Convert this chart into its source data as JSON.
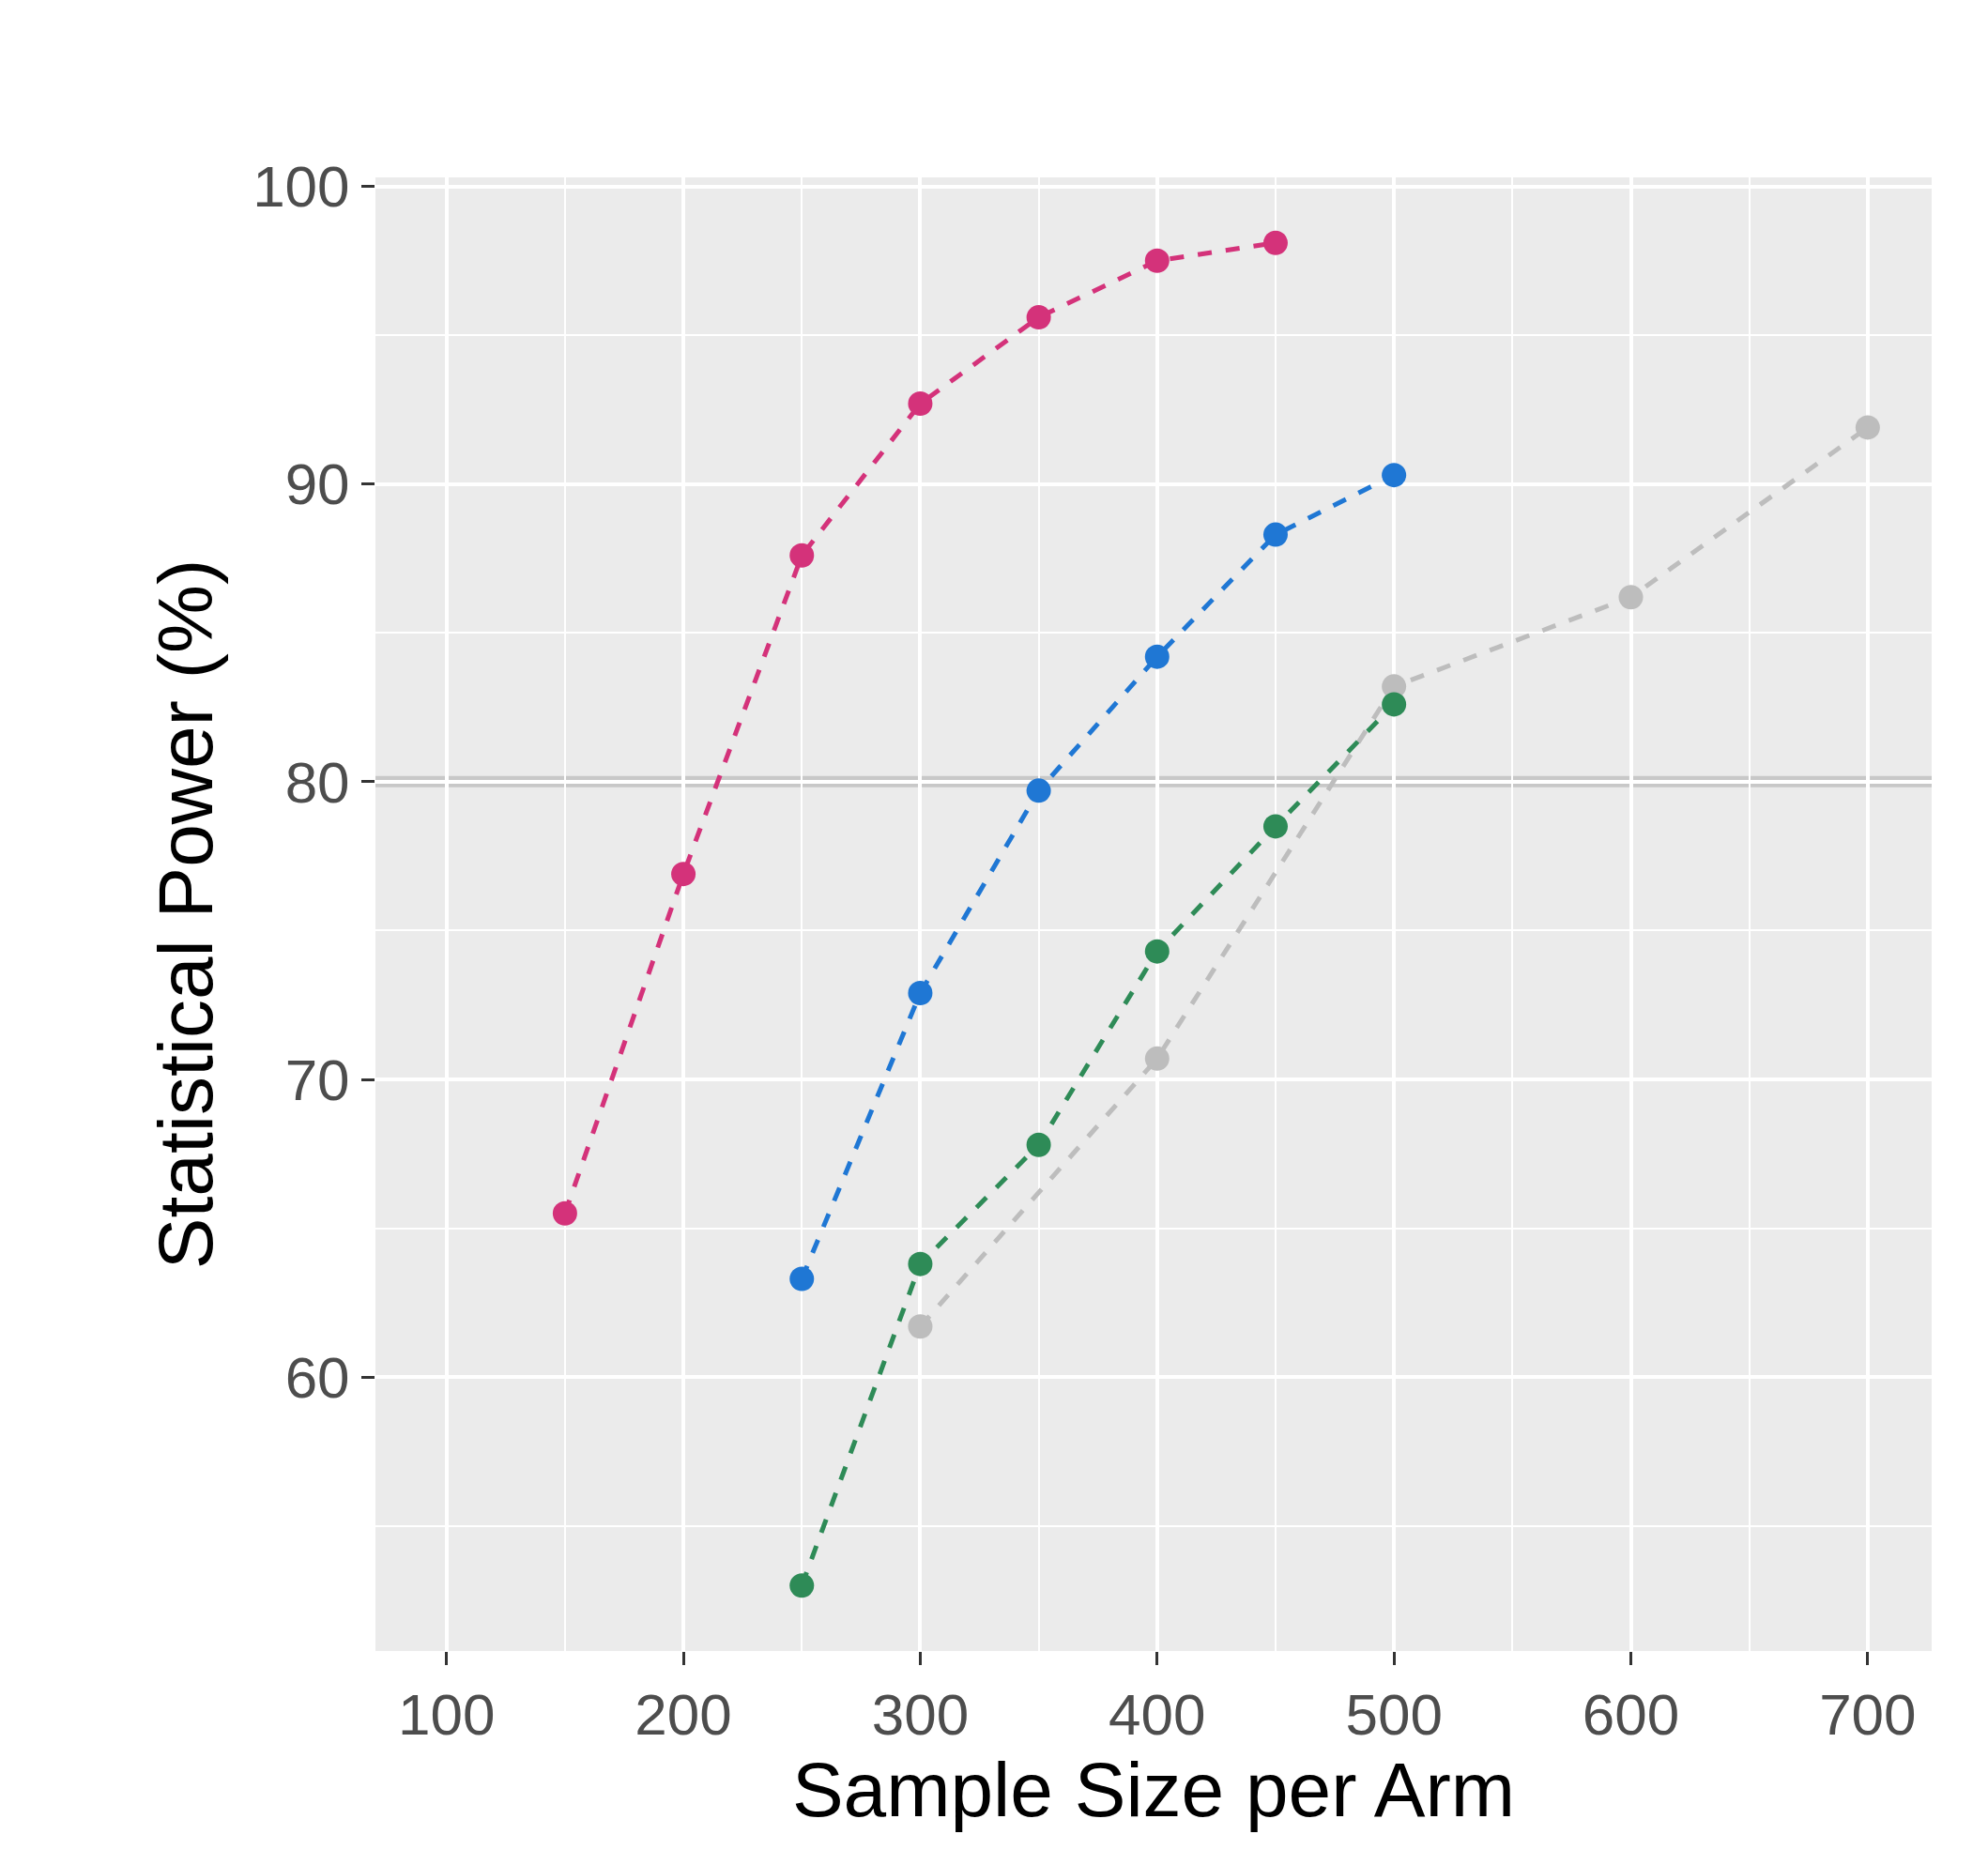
{
  "chart_data": {
    "type": "line",
    "xlabel": "Sample Size per Arm",
    "ylabel": "Statistical Power (%)",
    "xlim": [
      70,
      727
    ],
    "xticks": [
      100,
      200,
      300,
      400,
      500,
      600,
      700
    ],
    "ylim": [
      50.8,
      100.3
    ],
    "yticks": [
      60,
      70,
      80,
      90,
      100
    ],
    "grid": true,
    "marker": "circle",
    "line_style": "dashed",
    "ref_lines": [
      {
        "axis": "y",
        "value": 80,
        "color": "#c8c8c8"
      }
    ],
    "series": [
      {
        "color": "#d4327a",
        "x": [
          150,
          200,
          250,
          300,
          350,
          400,
          450
        ],
        "values": [
          65.5,
          76.9,
          87.6,
          92.7,
          95.6,
          97.5,
          98.1
        ]
      },
      {
        "color": "#1f77d4",
        "x": [
          250,
          300,
          350,
          400,
          450,
          500
        ],
        "values": [
          63.3,
          72.9,
          79.7,
          84.2,
          88.3,
          90.3
        ]
      },
      {
        "color": "#bdbdbd",
        "x": [
          300,
          400,
          500,
          600,
          700
        ],
        "values": [
          61.7,
          70.7,
          83.2,
          86.2,
          91.9
        ]
      },
      {
        "color": "#2e8b57",
        "x": [
          250,
          300,
          350,
          400,
          450,
          500
        ],
        "values": [
          53.0,
          63.8,
          67.8,
          74.3,
          78.5,
          82.6
        ]
      }
    ]
  }
}
